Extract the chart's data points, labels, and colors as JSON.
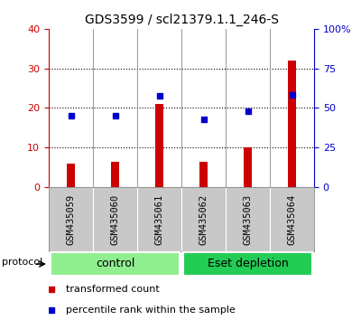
{
  "title": "GDS3599 / scl21379.1.1_246-S",
  "samples": [
    "GSM435059",
    "GSM435060",
    "GSM435061",
    "GSM435062",
    "GSM435063",
    "GSM435064"
  ],
  "transformed_counts": [
    6.0,
    6.3,
    21.0,
    6.3,
    10.0,
    32.0
  ],
  "percentile_ranks": [
    45.0,
    45.0,
    57.5,
    43.0,
    48.0,
    58.5
  ],
  "left_ylim": [
    0,
    40
  ],
  "right_ylim": [
    0,
    100
  ],
  "left_yticks": [
    0,
    10,
    20,
    30,
    40
  ],
  "right_yticks": [
    0,
    25,
    50,
    75,
    100
  ],
  "right_yticklabels": [
    "0",
    "25",
    "50",
    "75",
    "100%"
  ],
  "grid_values": [
    10,
    20,
    30
  ],
  "bar_color": "#cc0000",
  "dot_color": "#0000cc",
  "bar_width": 0.18,
  "groups": [
    {
      "label": "control",
      "indices": [
        0,
        1,
        2
      ],
      "color": "#90ee90"
    },
    {
      "label": "Eset depletion",
      "indices": [
        3,
        4,
        5
      ],
      "color": "#22cc55"
    }
  ],
  "protocol_label": "protocol",
  "legend_items": [
    {
      "label": "transformed count",
      "color": "#cc0000"
    },
    {
      "label": "percentile rank within the sample",
      "color": "#0000cc"
    }
  ],
  "left_axis_color": "#cc0000",
  "right_axis_color": "#0000cc",
  "bg_color": "#ffffff",
  "plot_bg": "#ffffff",
  "tick_area_bg": "#c8c8c8",
  "separator_color": "#888888",
  "title_fontsize": 10,
  "tick_fontsize": 8,
  "sample_fontsize": 7.5,
  "group_fontsize": 9,
  "legend_fontsize": 8
}
